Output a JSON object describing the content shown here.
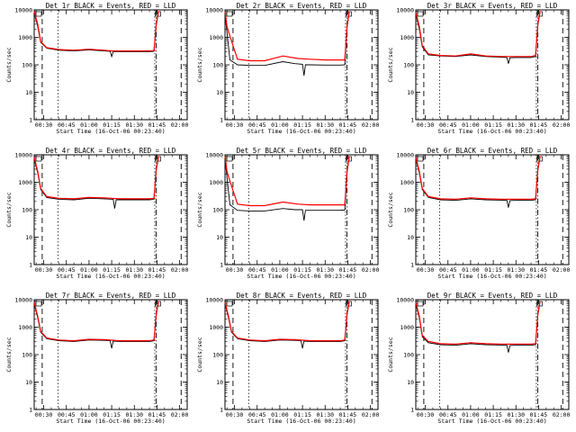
{
  "chart_data": {
    "type": "line",
    "xlabel": "Start Time (16-Oct-06 00:23:40)",
    "ylabel": "Counts/sec",
    "x_tick_labels": [
      "00:30",
      "00:45",
      "01:00",
      "01:15",
      "01:30",
      "01:45",
      "02:00"
    ],
    "x_ticks_min": [
      30,
      45,
      60,
      75,
      90,
      105,
      120
    ],
    "xlim_min": [
      23.7,
      125.0
    ],
    "y_tick_labels": [
      "1",
      "10",
      "100",
      "1000",
      "10000"
    ],
    "ylim": [
      1,
      10000
    ],
    "y_scale": "log",
    "series_colors": {
      "events": "#000000",
      "lld": "#ff0000"
    },
    "marker_lines_min": {
      "dashed": [
        29.0,
        121.0
      ],
      "dotted": [
        39.5,
        103.5
      ],
      "dashdot": [
        104.5
      ]
    },
    "panels": [
      {
        "title": "Det 1r BLACK = Events, RED = LLD",
        "lld": [
          [
            "23.7",
            9000
          ],
          [
            "26",
            3000
          ],
          [
            "28",
            700
          ],
          [
            "32",
            420
          ],
          [
            "40",
            360
          ],
          [
            "50",
            340
          ],
          [
            "60",
            370
          ],
          [
            "70",
            340
          ],
          [
            "75",
            320
          ],
          [
            "80",
            320
          ],
          [
            "90",
            320
          ],
          [
            "100",
            320
          ],
          [
            "103",
            330
          ],
          [
            "104.5",
            3000
          ],
          [
            "106",
            9000
          ]
        ],
        "events": [
          [
            "23.7",
            8000
          ],
          [
            "26",
            2500
          ],
          [
            "28",
            650
          ],
          [
            "32",
            400
          ],
          [
            "40",
            340
          ],
          [
            "50",
            320
          ],
          [
            "60",
            350
          ],
          [
            "70",
            320
          ],
          [
            "74",
            310
          ],
          [
            "75",
            200
          ],
          [
            "76",
            300
          ],
          [
            "80",
            300
          ],
          [
            "90",
            300
          ],
          [
            "100",
            300
          ],
          [
            "103",
            310
          ],
          [
            "104.5",
            2800
          ],
          [
            "106",
            8000
          ]
        ]
      },
      {
        "title": "Det 2r BLACK = Events, RED = LLD",
        "lld": [
          [
            "23.7",
            9000
          ],
          [
            "25",
            2500
          ],
          [
            "27",
            1100
          ],
          [
            "32",
            160
          ],
          [
            "40",
            140
          ],
          [
            "50",
            140
          ],
          [
            "62",
            210
          ],
          [
            "72",
            170
          ],
          [
            "80",
            160
          ],
          [
            "90",
            150
          ],
          [
            "100",
            150
          ],
          [
            "103",
            150
          ],
          [
            "104.5",
            2500
          ],
          [
            "106",
            9000
          ]
        ],
        "events": [
          [
            "23.7",
            8000
          ],
          [
            "25",
            1500
          ],
          [
            "27",
            150
          ],
          [
            "32",
            100
          ],
          [
            "40",
            95
          ],
          [
            "50",
            95
          ],
          [
            "62",
            130
          ],
          [
            "70",
            110
          ],
          [
            "75",
            105
          ],
          [
            "76",
            40
          ],
          [
            "77",
            100
          ],
          [
            "80",
            100
          ],
          [
            "90",
            98
          ],
          [
            "100",
            98
          ],
          [
            "103",
            100
          ],
          [
            "104.5",
            2300
          ],
          [
            "106",
            8000
          ]
        ]
      },
      {
        "title": "Det 3r BLACK = Events, RED = LLD",
        "lld": [
          [
            "23.7",
            8000
          ],
          [
            "26",
            2500
          ],
          [
            "28",
            500
          ],
          [
            "32",
            250
          ],
          [
            "40",
            220
          ],
          [
            "50",
            210
          ],
          [
            "60",
            250
          ],
          [
            "70",
            210
          ],
          [
            "80",
            200
          ],
          [
            "90",
            200
          ],
          [
            "100",
            200
          ],
          [
            "103",
            220
          ],
          [
            "104.5",
            3000
          ],
          [
            "106",
            9000
          ]
        ],
        "events": [
          [
            "23.7",
            7000
          ],
          [
            "26",
            2000
          ],
          [
            "28",
            450
          ],
          [
            "32",
            230
          ],
          [
            "40",
            210
          ],
          [
            "50",
            200
          ],
          [
            "60",
            230
          ],
          [
            "70",
            200
          ],
          [
            "80",
            190
          ],
          [
            "84",
            185
          ],
          [
            "85",
            110
          ],
          [
            "86",
            180
          ],
          [
            "90",
            185
          ],
          [
            "100",
            185
          ],
          [
            "103",
            200
          ],
          [
            "104.5",
            2800
          ],
          [
            "106",
            8000
          ]
        ]
      },
      {
        "title": "Det 4r BLACK = Events, RED = LLD",
        "lld": [
          [
            "23.7",
            8000
          ],
          [
            "26",
            2500
          ],
          [
            "28",
            600
          ],
          [
            "32",
            300
          ],
          [
            "40",
            260
          ],
          [
            "50",
            250
          ],
          [
            "60",
            280
          ],
          [
            "70",
            270
          ],
          [
            "80",
            250
          ],
          [
            "90",
            250
          ],
          [
            "100",
            250
          ],
          [
            "103",
            260
          ],
          [
            "104.5",
            3000
          ],
          [
            "106",
            9000
          ]
        ],
        "events": [
          [
            "23.7",
            7000
          ],
          [
            "26",
            2200
          ],
          [
            "28",
            550
          ],
          [
            "32",
            280
          ],
          [
            "40",
            240
          ],
          [
            "50",
            230
          ],
          [
            "60",
            260
          ],
          [
            "70",
            250
          ],
          [
            "76",
            240
          ],
          [
            "77",
            110
          ],
          [
            "78",
            230
          ],
          [
            "80",
            230
          ],
          [
            "90",
            230
          ],
          [
            "100",
            230
          ],
          [
            "103",
            240
          ],
          [
            "104.5",
            2800
          ],
          [
            "106",
            8000
          ]
        ]
      },
      {
        "title": "Det 5r BLACK = Events, RED = LLD",
        "lld": [
          [
            "23.7",
            9000
          ],
          [
            "25",
            2500
          ],
          [
            "27",
            1100
          ],
          [
            "32",
            160
          ],
          [
            "40",
            140
          ],
          [
            "50",
            140
          ],
          [
            "62",
            190
          ],
          [
            "72",
            160
          ],
          [
            "80",
            150
          ],
          [
            "90",
            150
          ],
          [
            "100",
            150
          ],
          [
            "103",
            150
          ],
          [
            "104.5",
            2500
          ],
          [
            "106",
            9000
          ]
        ],
        "events": [
          [
            "23.7",
            8000
          ],
          [
            "25",
            1500
          ],
          [
            "27",
            150
          ],
          [
            "32",
            95
          ],
          [
            "40",
            90
          ],
          [
            "50",
            90
          ],
          [
            "62",
            110
          ],
          [
            "70",
            100
          ],
          [
            "75",
            100
          ],
          [
            "76",
            40
          ],
          [
            "77",
            95
          ],
          [
            "80",
            95
          ],
          [
            "90",
            95
          ],
          [
            "100",
            95
          ],
          [
            "103",
            98
          ],
          [
            "104.5",
            2300
          ],
          [
            "106",
            8000
          ]
        ]
      },
      {
        "title": "Det 6r BLACK = Events, RED = LLD",
        "lld": [
          [
            "23.7",
            8000
          ],
          [
            "26",
            2500
          ],
          [
            "28",
            600
          ],
          [
            "32",
            300
          ],
          [
            "40",
            250
          ],
          [
            "50",
            240
          ],
          [
            "60",
            270
          ],
          [
            "70",
            250
          ],
          [
            "80",
            240
          ],
          [
            "90",
            240
          ],
          [
            "100",
            240
          ],
          [
            "103",
            250
          ],
          [
            "104.5",
            3000
          ],
          [
            "106",
            9000
          ]
        ],
        "events": [
          [
            "23.7",
            7000
          ],
          [
            "26",
            2200
          ],
          [
            "28",
            550
          ],
          [
            "32",
            280
          ],
          [
            "40",
            230
          ],
          [
            "50",
            220
          ],
          [
            "60",
            250
          ],
          [
            "70",
            230
          ],
          [
            "84",
            220
          ],
          [
            "85",
            120
          ],
          [
            "86",
            215
          ],
          [
            "90",
            220
          ],
          [
            "100",
            220
          ],
          [
            "103",
            230
          ],
          [
            "104.5",
            2800
          ],
          [
            "106",
            8000
          ]
        ]
      },
      {
        "title": "Det 7r BLACK = Events, RED = LLD",
        "lld": [
          [
            "23.7",
            8000
          ],
          [
            "26",
            2500
          ],
          [
            "28",
            700
          ],
          [
            "32",
            400
          ],
          [
            "40",
            340
          ],
          [
            "50",
            320
          ],
          [
            "60",
            360
          ],
          [
            "70",
            350
          ],
          [
            "80",
            320
          ],
          [
            "90",
            320
          ],
          [
            "100",
            320
          ],
          [
            "103",
            340
          ],
          [
            "104.5",
            3000
          ],
          [
            "106",
            9000
          ]
        ],
        "events": [
          [
            "23.7",
            7000
          ],
          [
            "26",
            2200
          ],
          [
            "28",
            650
          ],
          [
            "32",
            380
          ],
          [
            "40",
            320
          ],
          [
            "50",
            300
          ],
          [
            "60",
            340
          ],
          [
            "70",
            330
          ],
          [
            "74",
            320
          ],
          [
            "75",
            170
          ],
          [
            "76",
            310
          ],
          [
            "80",
            300
          ],
          [
            "90",
            300
          ],
          [
            "100",
            300
          ],
          [
            "103",
            320
          ],
          [
            "104.5",
            2800
          ],
          [
            "106",
            8000
          ]
        ]
      },
      {
        "title": "Det 8r BLACK = Events, RED = LLD",
        "lld": [
          [
            "23.7",
            8000
          ],
          [
            "26",
            2500
          ],
          [
            "28",
            700
          ],
          [
            "32",
            400
          ],
          [
            "40",
            340
          ],
          [
            "50",
            320
          ],
          [
            "60",
            360
          ],
          [
            "70",
            350
          ],
          [
            "80",
            320
          ],
          [
            "90",
            320
          ],
          [
            "100",
            320
          ],
          [
            "103",
            340
          ],
          [
            "104.5",
            3000
          ],
          [
            "106",
            9000
          ]
        ],
        "events": [
          [
            "23.7",
            7000
          ],
          [
            "26",
            2200
          ],
          [
            "28",
            650
          ],
          [
            "32",
            380
          ],
          [
            "40",
            320
          ],
          [
            "50",
            300
          ],
          [
            "60",
            340
          ],
          [
            "70",
            330
          ],
          [
            "74",
            320
          ],
          [
            "75",
            170
          ],
          [
            "76",
            310
          ],
          [
            "80",
            300
          ],
          [
            "90",
            300
          ],
          [
            "100",
            300
          ],
          [
            "103",
            320
          ],
          [
            "104.5",
            2800
          ],
          [
            "106",
            8000
          ]
        ]
      },
      {
        "title": "Det 9r BLACK = Events, RED = LLD",
        "lld": [
          [
            "23.7",
            8000
          ],
          [
            "26",
            2500
          ],
          [
            "28",
            500
          ],
          [
            "32",
            300
          ],
          [
            "40",
            250
          ],
          [
            "50",
            240
          ],
          [
            "60",
            270
          ],
          [
            "70",
            250
          ],
          [
            "80",
            240
          ],
          [
            "90",
            240
          ],
          [
            "100",
            240
          ],
          [
            "103",
            250
          ],
          [
            "104.5",
            3000
          ],
          [
            "106",
            9000
          ]
        ],
        "events": [
          [
            "23.7",
            7000
          ],
          [
            "26",
            2200
          ],
          [
            "28",
            450
          ],
          [
            "32",
            270
          ],
          [
            "40",
            230
          ],
          [
            "50",
            220
          ],
          [
            "60",
            250
          ],
          [
            "70",
            230
          ],
          [
            "84",
            220
          ],
          [
            "85",
            120
          ],
          [
            "86",
            215
          ],
          [
            "90",
            220
          ],
          [
            "100",
            220
          ],
          [
            "103",
            230
          ],
          [
            "104.5",
            2800
          ],
          [
            "106",
            8000
          ]
        ]
      }
    ]
  }
}
